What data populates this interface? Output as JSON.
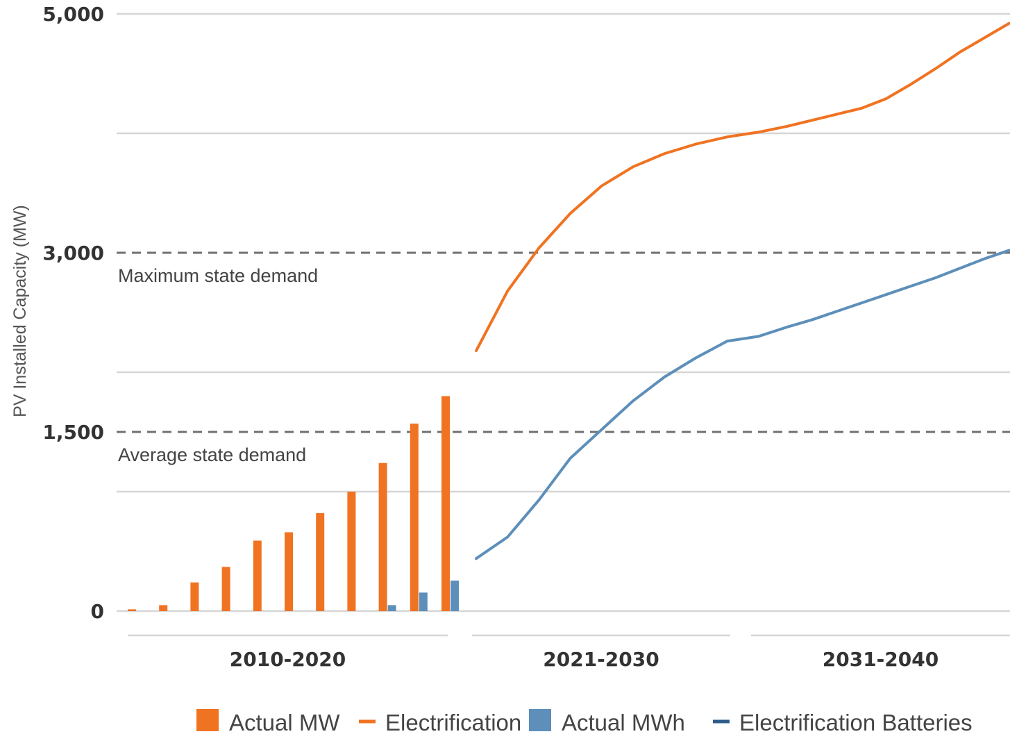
{
  "chart_data": {
    "type": "bar",
    "ylabel": "PV Installed Capacity (MW)",
    "ylim": [
      0,
      5000
    ],
    "yticks": [
      {
        "value": 0,
        "label": "0"
      },
      {
        "value": 1500,
        "label": "1,500"
      },
      {
        "value": 3000,
        "label": "3,000"
      },
      {
        "value": 5000,
        "label": "5,000"
      }
    ],
    "gridlines": [
      1000,
      2000,
      4000
    ],
    "grid": true,
    "groups": [
      {
        "label": "2010-2020",
        "from": 2010,
        "to": 2020
      },
      {
        "label": "2021-2030",
        "from": 2021,
        "to": 2030
      },
      {
        "label": "2031-2040",
        "from": 2031,
        "to": 2040
      }
    ],
    "reference_lines": [
      {
        "value": 3000,
        "label": "Maximum state demand"
      },
      {
        "value": 1500,
        "label": "Average state demand"
      }
    ],
    "bar_series": [
      {
        "name": "Actual MW",
        "color": "#F07322",
        "x": [
          2010,
          2011,
          2012,
          2013,
          2014,
          2015,
          2016,
          2017,
          2018,
          2019,
          2020
        ],
        "values": [
          15,
          50,
          240,
          370,
          590,
          660,
          820,
          1000,
          1240,
          1570,
          1800
        ]
      },
      {
        "name": "Actual MWh",
        "color": "#5D8FBA",
        "x": [
          2018,
          2019,
          2020
        ],
        "values": [
          50,
          155,
          255
        ]
      }
    ],
    "line_series": [
      {
        "name": "Electrification",
        "color": "#F07322",
        "x": [
          2021,
          2022,
          2023,
          2024,
          2025,
          2026,
          2027,
          2028,
          2029,
          2030,
          2031,
          2032,
          2033,
          2034,
          2035,
          2036,
          2037,
          2038,
          2039,
          2040
        ],
        "values": [
          2180,
          2680,
          3040,
          3330,
          3560,
          3720,
          3830,
          3910,
          3970,
          4010,
          4060,
          4110,
          4160,
          4210,
          4290,
          4410,
          4540,
          4680,
          4800,
          4920
        ]
      },
      {
        "name": "Electrification Batteries",
        "color": "#5D8FBA",
        "x": [
          2021,
          2022,
          2023,
          2024,
          2025,
          2026,
          2027,
          2028,
          2029,
          2030,
          2031,
          2032,
          2033,
          2034,
          2035,
          2036,
          2037,
          2038,
          2039,
          2040
        ],
        "values": [
          440,
          620,
          930,
          1280,
          1520,
          1760,
          1960,
          2120,
          2260,
          2300,
          2380,
          2440,
          2510,
          2580,
          2650,
          2720,
          2790,
          2870,
          2950,
          3020
        ]
      }
    ],
    "legend": {
      "position": "bottom",
      "items": [
        {
          "label": "Actual MW",
          "marker": "box",
          "color": "#F07322"
        },
        {
          "label": "Electrification",
          "marker": "line",
          "color": "#F07322"
        },
        {
          "label": "Actual MWh",
          "marker": "box",
          "color": "#5D8FBA"
        },
        {
          "label": "Electrification Batteries",
          "marker": "line",
          "color": "#2F5C8A"
        }
      ]
    }
  }
}
